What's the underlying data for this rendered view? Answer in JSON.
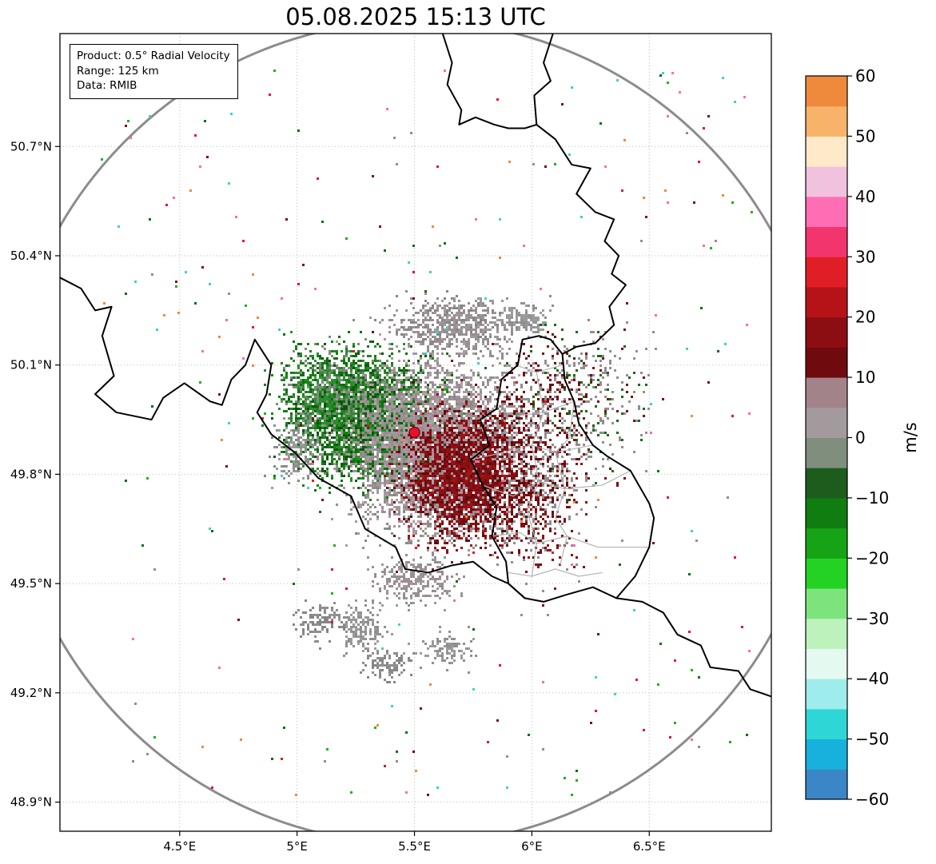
{
  "title": "05.08.2025 15:13 UTC",
  "info_box": {
    "lines": [
      "Product: 0.5° Radial Velocity",
      "Range: 125 km",
      "Data: RMIB"
    ]
  },
  "chart_data": {
    "type": "heatmap",
    "subtype": "radar-radial-velocity-ppi-map",
    "title": "05.08.2025 15:13 UTC",
    "xlabel": "",
    "ylabel": "",
    "xlim": [
      3.99,
      7.02
    ],
    "ylim": [
      48.82,
      51.01
    ],
    "grid": "dotted",
    "x_ticks": {
      "values": [
        4.5,
        5.0,
        5.5,
        6.0,
        6.5
      ],
      "labels": [
        "4.5°E",
        "5°E",
        "5.5°E",
        "6°E",
        "6.5°E"
      ]
    },
    "y_ticks": {
      "values": [
        50.7,
        50.4,
        50.1,
        49.8,
        49.5,
        49.2,
        48.9
      ],
      "labels": [
        "50.7°N",
        "50.4°N",
        "50.1°N",
        "49.8°N",
        "49.5°N",
        "49.2°N",
        "48.9°N"
      ]
    },
    "colorbar": {
      "label": "m/s",
      "vmin": -60,
      "vmax": 60,
      "position": "right",
      "ticks": [
        60,
        50,
        40,
        30,
        20,
        10,
        0,
        -10,
        -20,
        -30,
        -40,
        -50,
        -60
      ],
      "tick_labels": [
        "60",
        "50",
        "40",
        "30",
        "20",
        "10",
        "0",
        "−10",
        "−20",
        "−30",
        "−40",
        "−50",
        "−60"
      ],
      "segments": [
        [
          -60,
          -55,
          "#3a86c6"
        ],
        [
          -55,
          -50,
          "#18b0dc"
        ],
        [
          -50,
          -45,
          "#2fd6d6"
        ],
        [
          -45,
          -40,
          "#9fecec"
        ],
        [
          -40,
          -35,
          "#e4faf1"
        ],
        [
          -35,
          -30,
          "#bdf2bd"
        ],
        [
          -30,
          -25,
          "#7de47d"
        ],
        [
          -25,
          -20,
          "#24d224"
        ],
        [
          -20,
          -15,
          "#16a316"
        ],
        [
          -15,
          -10,
          "#107d10"
        ],
        [
          -10,
          -5,
          "#1d5c1d"
        ],
        [
          -5,
          0,
          "#7f8e7d"
        ],
        [
          0,
          5,
          "#a39a9e"
        ],
        [
          5,
          10,
          "#a3838a"
        ],
        [
          10,
          15,
          "#6f0a0e"
        ],
        [
          15,
          20,
          "#8c0d12"
        ],
        [
          20,
          25,
          "#b51318"
        ],
        [
          25,
          30,
          "#e01e26"
        ],
        [
          30,
          35,
          "#f2356d"
        ],
        [
          35,
          40,
          "#ff6eb4"
        ],
        [
          40,
          45,
          "#f0c2de"
        ],
        [
          45,
          50,
          "#ffe9c9"
        ],
        [
          50,
          55,
          "#f8b36b"
        ],
        [
          55,
          60,
          "#ef8a3c"
        ]
      ]
    },
    "radar_site": {
      "lon": 5.5,
      "lat": 49.915,
      "marker_color": "#e8112d",
      "marker_edge": "#7a0c10"
    },
    "range_ring": {
      "range_km": 125,
      "color": "#8c8c8c",
      "width": 3
    },
    "borders": [
      {
        "name": "france-belgium",
        "points": [
          [
            3.99,
            50.34
          ],
          [
            4.08,
            50.31
          ],
          [
            4.14,
            50.25
          ],
          [
            4.21,
            50.26
          ],
          [
            4.17,
            50.18
          ],
          [
            4.22,
            50.07
          ],
          [
            4.14,
            50.02
          ],
          [
            4.23,
            49.97
          ],
          [
            4.38,
            49.95
          ],
          [
            4.43,
            50.01
          ],
          [
            4.52,
            50.05
          ],
          [
            4.63,
            50.0
          ],
          [
            4.68,
            49.99
          ],
          [
            4.72,
            50.06
          ],
          [
            4.78,
            50.1
          ],
          [
            4.82,
            50.17
          ],
          [
            4.89,
            50.1
          ],
          [
            4.87,
            50.02
          ],
          [
            4.83,
            49.97
          ],
          [
            4.89,
            49.91
          ],
          [
            4.99,
            49.86
          ],
          [
            5.09,
            49.79
          ],
          [
            5.23,
            49.74
          ],
          [
            5.29,
            49.65
          ],
          [
            5.42,
            49.6
          ],
          [
            5.46,
            49.54
          ],
          [
            5.56,
            49.53
          ],
          [
            5.66,
            49.55
          ],
          [
            5.75,
            49.56
          ],
          [
            5.83,
            49.52
          ],
          [
            5.9,
            49.5
          ],
          [
            5.97,
            49.46
          ]
        ]
      },
      {
        "name": "luxembourg",
        "points": [
          [
            6.03,
            50.18
          ],
          [
            5.96,
            50.17
          ],
          [
            5.94,
            50.1
          ],
          [
            5.87,
            50.06
          ],
          [
            5.85,
            49.98
          ],
          [
            5.78,
            49.95
          ],
          [
            5.82,
            49.88
          ],
          [
            5.74,
            49.84
          ],
          [
            5.79,
            49.77
          ],
          [
            5.85,
            49.71
          ],
          [
            5.83,
            49.63
          ],
          [
            5.89,
            49.56
          ],
          [
            5.9,
            49.5
          ],
          [
            5.97,
            49.46
          ],
          [
            6.05,
            49.45
          ],
          [
            6.15,
            49.47
          ],
          [
            6.26,
            49.49
          ],
          [
            6.36,
            49.46
          ],
          [
            6.44,
            49.52
          ],
          [
            6.5,
            49.6
          ],
          [
            6.52,
            49.68
          ],
          [
            6.5,
            49.72
          ],
          [
            6.42,
            49.81
          ],
          [
            6.32,
            49.85
          ],
          [
            6.26,
            49.88
          ],
          [
            6.2,
            49.94
          ],
          [
            6.18,
            50.0
          ],
          [
            6.14,
            50.06
          ],
          [
            6.13,
            50.13
          ],
          [
            6.08,
            50.17
          ],
          [
            6.03,
            50.18
          ]
        ]
      },
      {
        "name": "belgium-germany",
        "points": [
          [
            6.02,
            50.76
          ],
          [
            6.1,
            50.72
          ],
          [
            6.17,
            50.65
          ],
          [
            6.25,
            50.64
          ],
          [
            6.19,
            50.57
          ],
          [
            6.27,
            50.52
          ],
          [
            6.35,
            50.5
          ],
          [
            6.31,
            50.44
          ],
          [
            6.37,
            50.4
          ],
          [
            6.34,
            50.35
          ],
          [
            6.4,
            50.32
          ],
          [
            6.33,
            50.26
          ],
          [
            6.35,
            50.21
          ],
          [
            6.27,
            50.16
          ],
          [
            6.19,
            50.15
          ],
          [
            6.13,
            50.13
          ]
        ]
      },
      {
        "name": "belgium-netherlands",
        "points": [
          [
            5.62,
            51.01
          ],
          [
            5.66,
            50.93
          ],
          [
            5.64,
            50.87
          ],
          [
            5.7,
            50.8
          ],
          [
            5.69,
            50.76
          ],
          [
            5.76,
            50.78
          ],
          [
            5.84,
            50.76
          ],
          [
            5.9,
            50.75
          ],
          [
            5.97,
            50.75
          ],
          [
            6.02,
            50.76
          ]
        ]
      },
      {
        "name": "netherlands-germany",
        "points": [
          [
            6.02,
            50.76
          ],
          [
            6.01,
            50.84
          ],
          [
            6.08,
            50.88
          ],
          [
            6.05,
            50.93
          ],
          [
            6.09,
            51.01
          ]
        ]
      },
      {
        "name": "france-germany",
        "points": [
          [
            6.36,
            49.46
          ],
          [
            6.47,
            49.45
          ],
          [
            6.56,
            49.42
          ],
          [
            6.62,
            49.36
          ],
          [
            6.72,
            49.33
          ],
          [
            6.76,
            49.27
          ],
          [
            6.88,
            49.26
          ],
          [
            6.93,
            49.21
          ],
          [
            7.02,
            49.19
          ]
        ]
      }
    ],
    "region_borders": [
      {
        "points": [
          [
            5.93,
            50.1
          ],
          [
            6.02,
            50.08
          ],
          [
            6.13,
            50.1
          ]
        ]
      },
      {
        "points": [
          [
            5.85,
            49.98
          ],
          [
            5.93,
            49.96
          ],
          [
            6.05,
            49.97
          ],
          [
            6.18,
            50.0
          ]
        ]
      },
      {
        "points": [
          [
            6.02,
            50.08
          ],
          [
            6.05,
            49.97
          ],
          [
            6.0,
            49.88
          ],
          [
            6.03,
            49.78
          ],
          [
            5.98,
            49.7
          ],
          [
            6.02,
            49.61
          ],
          [
            6.0,
            49.52
          ]
        ]
      },
      {
        "points": [
          [
            5.74,
            49.84
          ],
          [
            5.88,
            49.86
          ],
          [
            6.0,
            49.88
          ],
          [
            6.1,
            49.86
          ],
          [
            6.26,
            49.88
          ]
        ]
      },
      {
        "points": [
          [
            5.79,
            49.77
          ],
          [
            5.92,
            49.74
          ],
          [
            6.03,
            49.78
          ],
          [
            6.14,
            49.76
          ],
          [
            6.3,
            49.77
          ],
          [
            6.42,
            49.81
          ]
        ]
      },
      {
        "points": [
          [
            5.83,
            49.63
          ],
          [
            5.95,
            49.64
          ],
          [
            6.02,
            49.61
          ],
          [
            6.15,
            49.63
          ],
          [
            6.28,
            49.6
          ],
          [
            6.5,
            49.6
          ]
        ]
      },
      {
        "points": [
          [
            5.9,
            49.53
          ],
          [
            6.0,
            49.52
          ],
          [
            6.1,
            49.54
          ],
          [
            6.2,
            49.52
          ],
          [
            6.3,
            49.53
          ]
        ]
      },
      {
        "points": [
          [
            6.18,
            50.0
          ],
          [
            6.16,
            49.9
          ],
          [
            6.1,
            49.86
          ],
          [
            6.14,
            49.76
          ],
          [
            6.1,
            49.68
          ],
          [
            6.15,
            49.63
          ],
          [
            6.12,
            49.55
          ]
        ]
      }
    ],
    "echo_regions": [
      {
        "name": "approaching-core",
        "n": 3000,
        "cx": 5.3,
        "cy": 49.95,
        "sx": 0.15,
        "sy": 0.08,
        "colors": [
          "#0d6e0d",
          "#128412",
          "#0a560a",
          "#2e8b2e",
          "#167d16"
        ]
      },
      {
        "name": "approaching-northwest-tail",
        "n": 900,
        "cx": 5.14,
        "cy": 50.03,
        "sx": 0.1,
        "sy": 0.06,
        "colors": [
          "#0d6e0d",
          "#2e8b2e",
          "#128412",
          "#7b8b7b"
        ]
      },
      {
        "name": "near-zero-center",
        "n": 4200,
        "cx": 5.57,
        "cy": 49.88,
        "sx": 0.17,
        "sy": 0.105,
        "colors": [
          "#9a8a90",
          "#a8929c",
          "#8f8f8f",
          "#a89aa0",
          "#7f8d7f",
          "#b3a0a8"
        ]
      },
      {
        "name": "receding-core",
        "n": 2600,
        "cx": 5.7,
        "cy": 49.8,
        "sx": 0.12,
        "sy": 0.085,
        "colors": [
          "#7a0c10",
          "#8f1014",
          "#600a0d",
          "#a0151a",
          "#9a8a90"
        ]
      },
      {
        "name": "receding-east-fringe",
        "n": 800,
        "cx": 5.97,
        "cy": 49.86,
        "sx": 0.11,
        "sy": 0.13,
        "colors": [
          "#7a0c10",
          "#8f8f8f",
          "#9a8a90",
          "#600a0d"
        ]
      },
      {
        "name": "receding-border-scatter",
        "n": 260,
        "cx": 6.02,
        "cy": 49.72,
        "sx": 0.08,
        "sy": 0.09,
        "colors": [
          "#7a0c10",
          "#8f1014",
          "#8f8f8f"
        ]
      },
      {
        "name": "stratiform-north-band",
        "n": 650,
        "cx": 5.67,
        "cy": 50.21,
        "sx": 0.13,
        "sy": 0.035,
        "colors": [
          "#8f8f8f",
          "#9b9b9b",
          "#858585",
          "#a08c92"
        ]
      },
      {
        "name": "north-band-east-blob",
        "n": 150,
        "cx": 5.95,
        "cy": 50.23,
        "sx": 0.05,
        "sy": 0.02,
        "colors": [
          "#8f8f8f",
          "#9b9b9b"
        ]
      },
      {
        "name": "west-gray-patch",
        "n": 200,
        "cx": 5.0,
        "cy": 49.88,
        "sx": 0.05,
        "sy": 0.045,
        "colors": [
          "#8f8f8f",
          "#9b9b9b",
          "#7f8d7f"
        ]
      },
      {
        "name": "northeast-scatter",
        "n": 420,
        "cx": 6.2,
        "cy": 50.0,
        "sx": 0.13,
        "sy": 0.11,
        "colors": [
          "#8f8f8f",
          "#7a0c10",
          "#9a8a90",
          "#0d6e0d"
        ]
      },
      {
        "name": "south-gray-1",
        "n": 280,
        "cx": 5.5,
        "cy": 49.51,
        "sx": 0.09,
        "sy": 0.03,
        "colors": [
          "#8f8f8f",
          "#9b9b9b",
          "#a08c92"
        ]
      },
      {
        "name": "south-gray-2",
        "n": 160,
        "cx": 5.27,
        "cy": 49.38,
        "sx": 0.05,
        "sy": 0.03,
        "colors": [
          "#8f8f8f",
          "#9b9b9b"
        ]
      },
      {
        "name": "south-gray-3",
        "n": 130,
        "cx": 5.1,
        "cy": 49.4,
        "sx": 0.05,
        "sy": 0.025,
        "colors": [
          "#8f8f8f",
          "#858585"
        ]
      },
      {
        "name": "south-gray-4",
        "n": 110,
        "cx": 5.62,
        "cy": 49.32,
        "sx": 0.06,
        "sy": 0.02,
        "colors": [
          "#8f8f8f",
          "#9b9b9b"
        ]
      },
      {
        "name": "south-gray-5",
        "n": 110,
        "cx": 5.38,
        "cy": 49.28,
        "sx": 0.05,
        "sy": 0.02,
        "colors": [
          "#8f8f8f",
          "#858585"
        ]
      },
      {
        "name": "speckle-noise",
        "dist": "uniform",
        "n": 300,
        "x0": 4.15,
        "x1": 6.95,
        "y0": 48.92,
        "y1": 50.92,
        "colors": [
          "#19b419",
          "#7a0c10",
          "#40d0d0",
          "#ff69b4",
          "#8f8f8f",
          "#0d6e0d",
          "#e8112d",
          "#f08a3c"
        ]
      }
    ]
  }
}
